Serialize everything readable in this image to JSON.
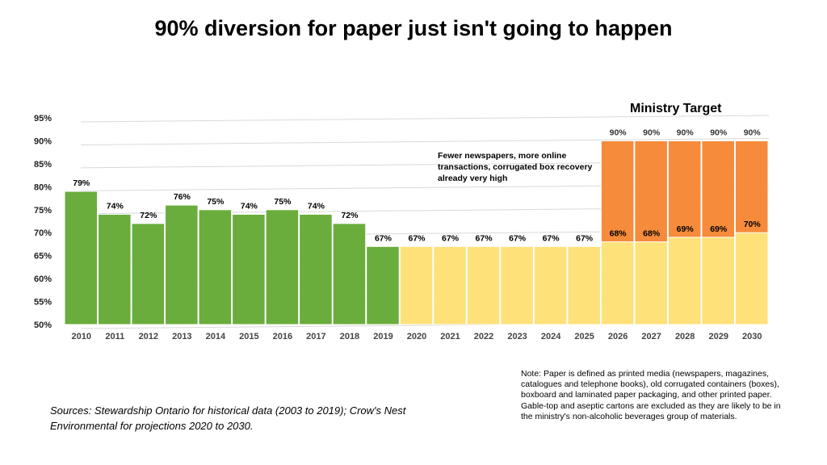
{
  "slide": {
    "title": "90% diversion for paper just isn't going to happen",
    "annotation": "Fewer newspapers, more online transactions, corrugated box recovery already very high",
    "target_label": "Ministry Target",
    "note": "Note: Paper is defined as printed media (newspapers, magazines, catalogues and telephone books), old corrugated containers (boxes), boxboard and laminated paper packaging, and other printed paper. Gable-top and aseptic cartons are excluded as they are likely to be in the ministry's non-alcoholic beverages group of materials.",
    "sources": "Sources: Stewardship Ontario for historical data (2003 to 2019); Crow's Nest Environmental for projections 2020 to 2030."
  },
  "chart_data": {
    "type": "bar",
    "categories": [
      "2010",
      "2011",
      "2012",
      "2013",
      "2014",
      "2015",
      "2016",
      "2017",
      "2018",
      "2019",
      "2020",
      "2021",
      "2022",
      "2023",
      "2024",
      "2025",
      "2026",
      "2027",
      "2028",
      "2029",
      "2030"
    ],
    "series": [
      {
        "values": [
          79,
          74,
          72,
          76,
          75,
          74,
          75,
          74,
          72,
          67,
          67,
          67,
          67,
          67,
          67,
          67,
          68,
          68,
          69,
          69,
          70
        ],
        "labels": [
          "79%",
          "74%",
          "72%",
          "76%",
          "75%",
          "74%",
          "75%",
          "74%",
          "72%",
          "67%",
          "67%",
          "67%",
          "67%",
          "67%",
          "67%",
          "67%",
          "68%",
          "68%",
          "69%",
          "69%",
          "70%"
        ],
        "colors": [
          "#6aad3c",
          "#6aad3c",
          "#6aad3c",
          "#6aad3c",
          "#6aad3c",
          "#6aad3c",
          "#6aad3c",
          "#6aad3c",
          "#6aad3c",
          "#6aad3c",
          "#ffe17a",
          "#ffe17a",
          "#ffe17a",
          "#ffe17a",
          "#ffe17a",
          "#ffe17a",
          "#ffe17a",
          "#ffe17a",
          "#ffe17a",
          "#ffe17a",
          "#ffe17a"
        ]
      },
      {
        "name": "Ministry Target",
        "values": [
          null,
          null,
          null,
          null,
          null,
          null,
          null,
          null,
          null,
          null,
          null,
          null,
          null,
          null,
          null,
          null,
          90,
          90,
          90,
          90,
          90
        ],
        "labels": [
          "",
          "",
          "",
          "",
          "",
          "",
          "",
          "",
          "",
          "",
          "",
          "",
          "",
          "",
          "",
          "",
          "90%",
          "90%",
          "90%",
          "90%",
          "90%"
        ],
        "color": "#f68b3b"
      }
    ],
    "yticks": [
      "95%",
      "90%",
      "85%",
      "80%",
      "75%",
      "70%",
      "65%",
      "60%",
      "55%",
      "50%"
    ],
    "ylim": [
      50,
      95
    ],
    "grid": true
  },
  "colors": {
    "historical": "#6aad3c",
    "projection": "#ffe17a",
    "target": "#f68b3b",
    "gridline": "#d9d9d9"
  }
}
